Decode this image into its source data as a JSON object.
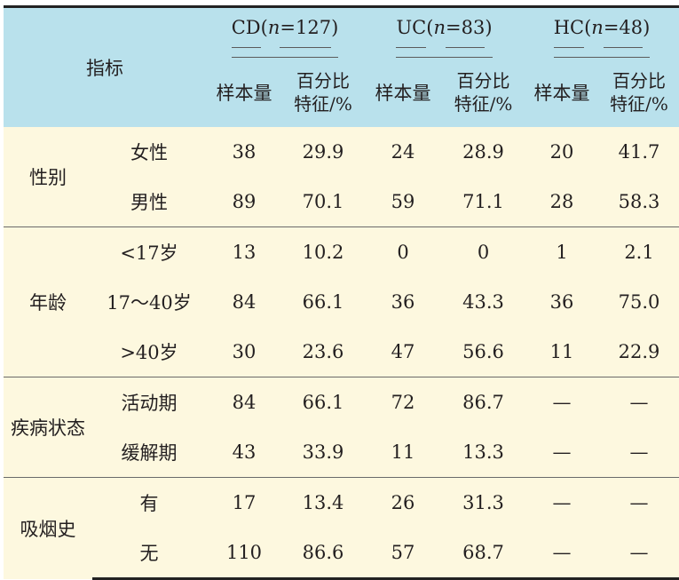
{
  "header": {
    "indicator": "指标",
    "groups": [
      {
        "name": "CD",
        "n_label": "n",
        "n_value": "=127"
      },
      {
        "name": "UC",
        "n_label": "n",
        "n_value": "=83"
      },
      {
        "name": "HC",
        "n_label": "n",
        "n_value": "=48"
      }
    ],
    "sub": {
      "sample": "样本量",
      "pct_line1": "百分比",
      "pct_line2": "特征/%"
    }
  },
  "rows": [
    {
      "cat": "性别",
      "sub": "女性",
      "v": [
        "38",
        "29.9",
        "24",
        "28.9",
        "20",
        "41.7"
      ]
    },
    {
      "cat": "",
      "sub": "男性",
      "v": [
        "89",
        "70.1",
        "59",
        "71.1",
        "28",
        "58.3"
      ]
    },
    {
      "cat": "年龄",
      "sub": "<17岁",
      "v": [
        "13",
        "10.2",
        "0",
        "0",
        "1",
        "2.1"
      ]
    },
    {
      "cat": "",
      "sub": "17～40岁",
      "v": [
        "84",
        "66.1",
        "36",
        "43.3",
        "36",
        "75.0"
      ]
    },
    {
      "cat": "",
      "sub": ">40岁",
      "v": [
        "30",
        "23.6",
        "47",
        "56.6",
        "11",
        "22.9"
      ]
    },
    {
      "cat": "疾病状态",
      "sub": "活动期",
      "v": [
        "84",
        "66.1",
        "72",
        "86.7",
        "—",
        "—"
      ]
    },
    {
      "cat": "",
      "sub": "缓解期",
      "v": [
        "43",
        "33.9",
        "11",
        "13.3",
        "—",
        "—"
      ]
    },
    {
      "cat": "吸烟史",
      "sub": "有",
      "v": [
        "17",
        "13.4",
        "26",
        "31.3",
        "—",
        "—"
      ]
    },
    {
      "cat": "",
      "sub": "无",
      "v": [
        "110",
        "86.6",
        "57",
        "68.7",
        "—",
        "—"
      ]
    }
  ]
}
